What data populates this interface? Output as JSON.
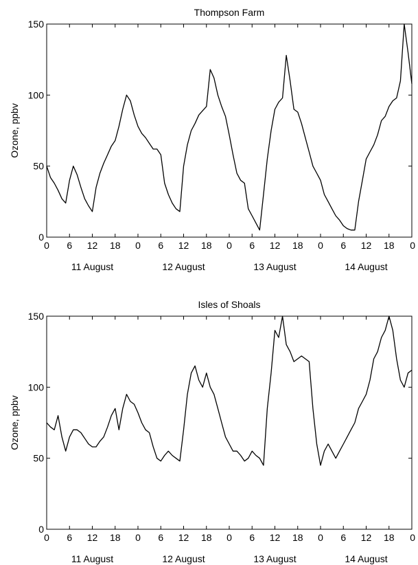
{
  "chart_data": [
    {
      "type": "line",
      "title": "Thompson Farm",
      "ylabel": "Ozone, ppbv",
      "xlabel": "",
      "xlim": [
        0,
        96
      ],
      "ylim": [
        0,
        150
      ],
      "yticks": [
        0,
        50,
        100,
        150
      ],
      "xtick_labels": [
        "0",
        "6",
        "12",
        "18",
        "0",
        "6",
        "12",
        "18",
        "0",
        "6",
        "12",
        "18",
        "0",
        "6",
        "12",
        "18",
        "0"
      ],
      "day_labels": [
        "11 August",
        "12 August",
        "13 August",
        "14 August"
      ],
      "grid": false,
      "series": [
        {
          "x": [
            0,
            1,
            2,
            3,
            4,
            5,
            6,
            7,
            8,
            9,
            10,
            11,
            12,
            13,
            14,
            15,
            16,
            17,
            18,
            19,
            20,
            21,
            22,
            23,
            24,
            25,
            26,
            27,
            28,
            29,
            30,
            31,
            32,
            33,
            34,
            35,
            36,
            37,
            38,
            39,
            40,
            41,
            42,
            43,
            44,
            45,
            46,
            47,
            48,
            49,
            50,
            51,
            52,
            53,
            54,
            55,
            56,
            57,
            58,
            59,
            60,
            61,
            62,
            63,
            64,
            65,
            66,
            67,
            68,
            69,
            70,
            71,
            72,
            73,
            74,
            75,
            76,
            77,
            78,
            79,
            80,
            81,
            82,
            83,
            84,
            85,
            86,
            87,
            88,
            89,
            90,
            91,
            92,
            93,
            94,
            95,
            96
          ],
          "values": [
            50,
            42,
            38,
            33,
            27,
            24,
            40,
            50,
            44,
            35,
            27,
            22,
            18,
            35,
            45,
            52,
            58,
            64,
            68,
            78,
            90,
            100,
            96,
            86,
            78,
            73,
            70,
            66,
            62,
            62,
            58,
            38,
            30,
            24,
            20,
            18,
            50,
            65,
            75,
            80,
            86,
            89,
            92,
            118,
            112,
            100,
            92,
            85,
            72,
            58,
            45,
            40,
            38,
            20,
            15,
            10,
            5,
            30,
            55,
            75,
            90,
            95,
            98,
            128,
            110,
            90,
            88,
            80,
            70,
            60,
            50,
            45,
            40,
            30,
            25,
            20,
            15,
            12,
            8,
            6,
            5,
            5,
            25,
            40,
            55,
            60,
            65,
            72,
            82,
            85,
            92,
            96,
            98,
            110,
            150,
            130,
            108
          ]
        }
      ]
    },
    {
      "type": "line",
      "title": "Isles of Shoals",
      "ylabel": "Ozone, ppbv",
      "xlabel": "",
      "xlim": [
        0,
        96
      ],
      "ylim": [
        0,
        150
      ],
      "yticks": [
        0,
        50,
        100,
        150
      ],
      "xtick_labels": [
        "0",
        "6",
        "12",
        "18",
        "0",
        "6",
        "12",
        "18",
        "0",
        "6",
        "12",
        "18",
        "0",
        "6",
        "12",
        "18",
        "0"
      ],
      "day_labels": [
        "11 August",
        "12 August",
        "13 August",
        "14 August"
      ],
      "grid": false,
      "series": [
        {
          "x": [
            0,
            1,
            2,
            3,
            4,
            5,
            6,
            7,
            8,
            9,
            10,
            11,
            12,
            13,
            14,
            15,
            16,
            17,
            18,
            19,
            20,
            21,
            22,
            23,
            24,
            25,
            26,
            27,
            28,
            29,
            30,
            31,
            32,
            33,
            34,
            35,
            36,
            37,
            38,
            39,
            40,
            41,
            42,
            43,
            44,
            45,
            46,
            47,
            48,
            49,
            50,
            51,
            52,
            53,
            54,
            55,
            56,
            57,
            58,
            59,
            60,
            61,
            62,
            63,
            64,
            65,
            66,
            67,
            68,
            69,
            70,
            71,
            72,
            73,
            74,
            75,
            76,
            77,
            78,
            79,
            80,
            81,
            82,
            83,
            84,
            85,
            86,
            87,
            88,
            89,
            90,
            91,
            92,
            93,
            94,
            95,
            96
          ],
          "values": [
            75,
            72,
            70,
            80,
            65,
            55,
            65,
            70,
            70,
            68,
            64,
            60,
            58,
            58,
            62,
            65,
            72,
            80,
            85,
            70,
            85,
            95,
            90,
            88,
            82,
            75,
            70,
            68,
            58,
            50,
            48,
            52,
            55,
            52,
            50,
            48,
            70,
            95,
            110,
            115,
            105,
            100,
            110,
            100,
            95,
            85,
            75,
            65,
            60,
            55,
            55,
            52,
            48,
            50,
            55,
            52,
            50,
            45,
            85,
            110,
            140,
            135,
            150,
            130,
            125,
            118,
            120,
            122,
            120,
            118,
            85,
            60,
            45,
            55,
            60,
            55,
            50,
            55,
            60,
            65,
            70,
            75,
            85,
            90,
            95,
            105,
            120,
            125,
            135,
            140,
            150,
            140,
            120,
            105,
            100,
            110,
            112
          ]
        }
      ]
    }
  ]
}
